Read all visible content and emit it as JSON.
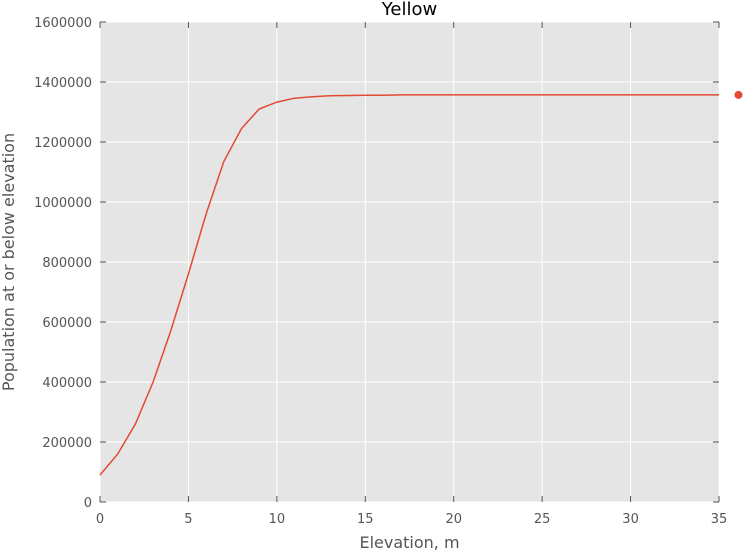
{
  "chart_data": {
    "type": "line",
    "title": "Yellow",
    "xlabel": "Elevation, m",
    "ylabel": "Population at or below elevation",
    "xlim": [
      0,
      35
    ],
    "ylim": [
      0,
      1600000
    ],
    "xticks": [
      0,
      5,
      10,
      15,
      20,
      25,
      30,
      35
    ],
    "yticks": [
      0,
      200000,
      400000,
      600000,
      800000,
      1000000,
      1200000,
      1400000,
      1600000
    ],
    "grid": true,
    "series": [
      {
        "x": [
          0,
          1,
          2,
          3,
          4,
          5,
          6,
          7,
          8,
          9,
          10,
          11,
          12,
          13,
          14,
          15,
          16,
          17,
          18,
          19,
          20,
          21,
          22,
          23,
          24,
          25,
          26,
          27,
          28,
          29,
          30,
          31,
          32,
          33,
          34,
          35
        ],
        "y": [
          90000,
          160000,
          260000,
          400000,
          570000,
          760000,
          960000,
          1135000,
          1245000,
          1310000,
          1333000,
          1346000,
          1351000,
          1354000,
          1355000,
          1356000,
          1356000,
          1357000,
          1357000,
          1357000,
          1357000,
          1357000,
          1357000,
          1357000,
          1357000,
          1357000,
          1357000,
          1357000,
          1357000,
          1357000,
          1357000,
          1357000,
          1357000,
          1357000,
          1357000,
          1357000
        ],
        "color": "#e24a33"
      }
    ],
    "marker_point": {
      "x": 36.1,
      "y": 1357000,
      "color": "#e24a33"
    },
    "colors": {
      "plot_background": "#e5e5e5",
      "grid": "#ffffff",
      "text": "#555555"
    }
  }
}
